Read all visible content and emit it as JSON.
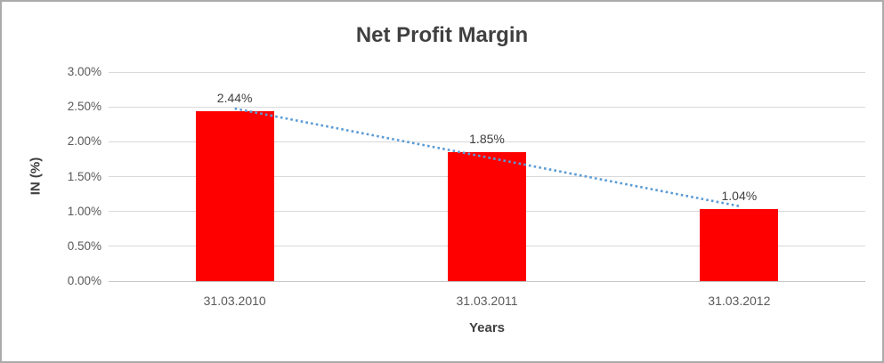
{
  "chart_data": {
    "type": "bar",
    "title": "Net Profit Margin",
    "xlabel": "Years",
    "ylabel": "IN (%)",
    "categories": [
      "31.03.2010",
      "31.03.2011",
      "31.03.2012"
    ],
    "values": [
      2.44,
      1.85,
      1.04
    ],
    "data_labels": [
      "2.44%",
      "1.85%",
      "1.04%"
    ],
    "ylim": [
      0,
      3
    ],
    "ytick_values": [
      0,
      0.5,
      1,
      1.5,
      2,
      2.5,
      3
    ],
    "ytick_labels": [
      "0.00%",
      "0.50%",
      "1.00%",
      "1.50%",
      "2.00%",
      "2.50%",
      "3.00%"
    ],
    "grid": true,
    "legend": "none",
    "bar_color": "#ff0000",
    "trendline": {
      "type": "linear",
      "style": "dotted",
      "color": "#5b9bd5"
    },
    "colors": {
      "title_text": "#404040",
      "tick_text": "#595959",
      "gridline": "#d9d9d9",
      "axis_line": "#c6c6c6",
      "frame_border": "#ababab",
      "background": "#ffffff"
    }
  }
}
